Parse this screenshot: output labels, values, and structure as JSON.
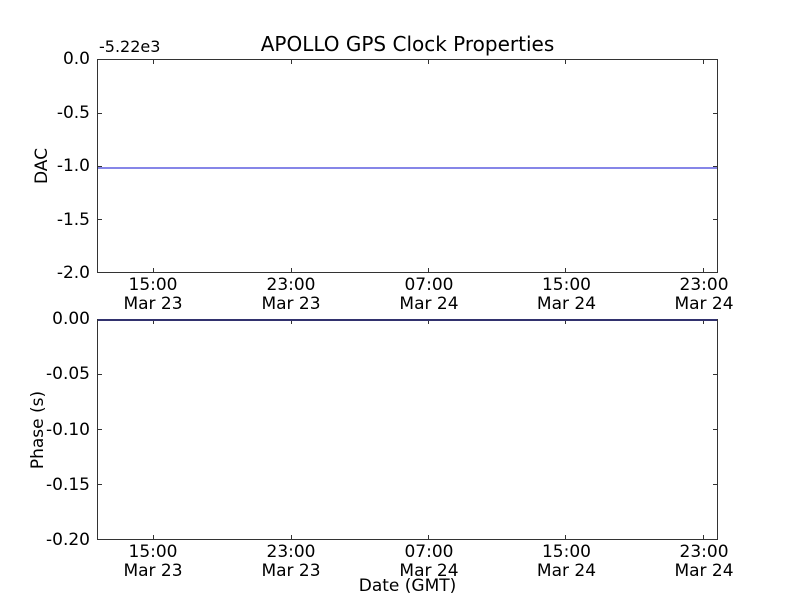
{
  "figure": {
    "background": "#ffffff",
    "frame_color": "#333333",
    "line_color": "#8686e8",
    "line_on_spine_color": "#32326e"
  },
  "chart_data": [
    {
      "type": "line",
      "title": "APOLLO GPS Clock Properties",
      "ylabel": "DAC",
      "y_offset_text": "-5.22e3",
      "ylim": [
        -2.0,
        0.0
      ],
      "ytick_labels": [
        "0.0",
        "-0.5",
        "-1.0",
        "-1.5",
        "-2.0"
      ],
      "xtick_labels": [
        [
          "15:00",
          "Mar 23"
        ],
        [
          "23:00",
          "Mar 23"
        ],
        [
          "07:00",
          "Mar 24"
        ],
        [
          "15:00",
          "Mar 24"
        ],
        [
          "23:00",
          "Mar 24"
        ]
      ],
      "grid": false,
      "series": [
        {
          "name": "DAC",
          "shape": "constant-horizontal-line",
          "y": -1.01,
          "color": "#8686e8"
        }
      ]
    },
    {
      "type": "line",
      "title": "",
      "ylabel": "Phase (s)",
      "xlabel": "Date (GMT)",
      "ylim": [
        -0.2,
        0.0
      ],
      "ytick_labels": [
        "0.00",
        "-0.05",
        "-0.10",
        "-0.15",
        "-0.20"
      ],
      "xtick_labels": [
        [
          "15:00",
          "Mar 23"
        ],
        [
          "23:00",
          "Mar 23"
        ],
        [
          "07:00",
          "Mar 24"
        ],
        [
          "15:00",
          "Mar 24"
        ],
        [
          "23:00",
          "Mar 24"
        ]
      ],
      "grid": false,
      "series": [
        {
          "name": "Phase",
          "shape": "constant-horizontal-line",
          "y": 0.0,
          "color": "#8686e8"
        }
      ]
    }
  ]
}
